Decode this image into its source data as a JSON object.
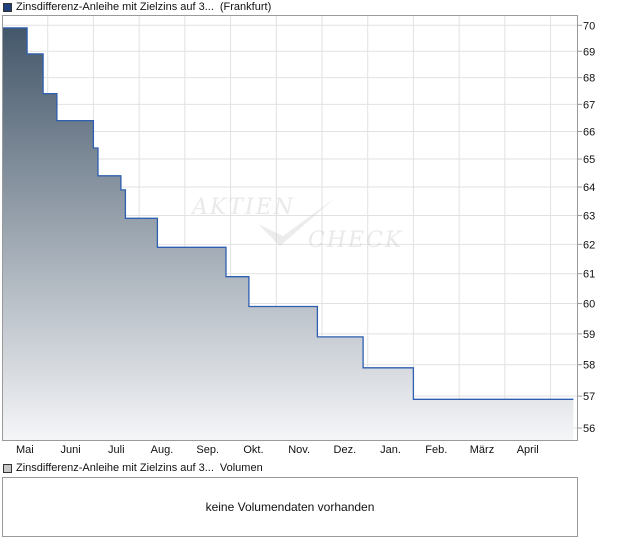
{
  "price_legend": {
    "name": "Zinsdifferenz-Anleihe mit Zielzins auf 3...",
    "exchange": "(Frankfurt)",
    "swatch_color": "#1f3f7a"
  },
  "volume_legend": {
    "name": "Zinsdifferenz-Anleihe mit Zielzins auf 3...",
    "label": "Volumen",
    "swatch_color": "#c8c8c8"
  },
  "volume_panel": {
    "message": "keine Volumendaten vorhanden"
  },
  "watermark": {
    "line1": "Aktien",
    "line2": "Check"
  },
  "chart_data": {
    "type": "area",
    "x_tick_labels": [
      "Mai",
      "Juni",
      "Juli",
      "Aug.",
      "Sep.",
      "Okt.",
      "Nov.",
      "Dez.",
      "Jan.",
      "Feb.",
      "März",
      "April"
    ],
    "y_tick_labels": [
      "56",
      "57",
      "58",
      "59",
      "60",
      "61",
      "62",
      "63",
      "64",
      "65",
      "66",
      "67",
      "68",
      "69",
      "70"
    ],
    "yscale": "log",
    "ylim": [
      55.6,
      70.4
    ],
    "x_range_months": [
      0,
      12.6
    ],
    "y_axis_side": "right",
    "grid": true,
    "line_color": "#2f5fb0",
    "fill_top_color": "#44576a",
    "fill_bottom_color": "#f5f6f8",
    "series": [
      {
        "points": [
          [
            0.0,
            69.9
          ],
          [
            0.55,
            69.9
          ],
          [
            0.55,
            68.9
          ],
          [
            0.9,
            68.9
          ],
          [
            0.9,
            67.4
          ],
          [
            1.2,
            67.4
          ],
          [
            1.2,
            66.4
          ],
          [
            2.0,
            66.4
          ],
          [
            2.0,
            65.4
          ],
          [
            2.1,
            65.4
          ],
          [
            2.1,
            64.4
          ],
          [
            2.6,
            64.4
          ],
          [
            2.6,
            63.9
          ],
          [
            2.7,
            63.9
          ],
          [
            2.7,
            62.9
          ],
          [
            3.4,
            62.9
          ],
          [
            3.4,
            61.9
          ],
          [
            4.9,
            61.9
          ],
          [
            4.9,
            60.9
          ],
          [
            5.4,
            60.9
          ],
          [
            5.4,
            59.9
          ],
          [
            6.9,
            59.9
          ],
          [
            6.9,
            58.9
          ],
          [
            7.9,
            58.9
          ],
          [
            7.9,
            57.9
          ],
          [
            9.0,
            57.9
          ],
          [
            9.0,
            56.9
          ],
          [
            12.5,
            56.9
          ]
        ]
      }
    ]
  }
}
